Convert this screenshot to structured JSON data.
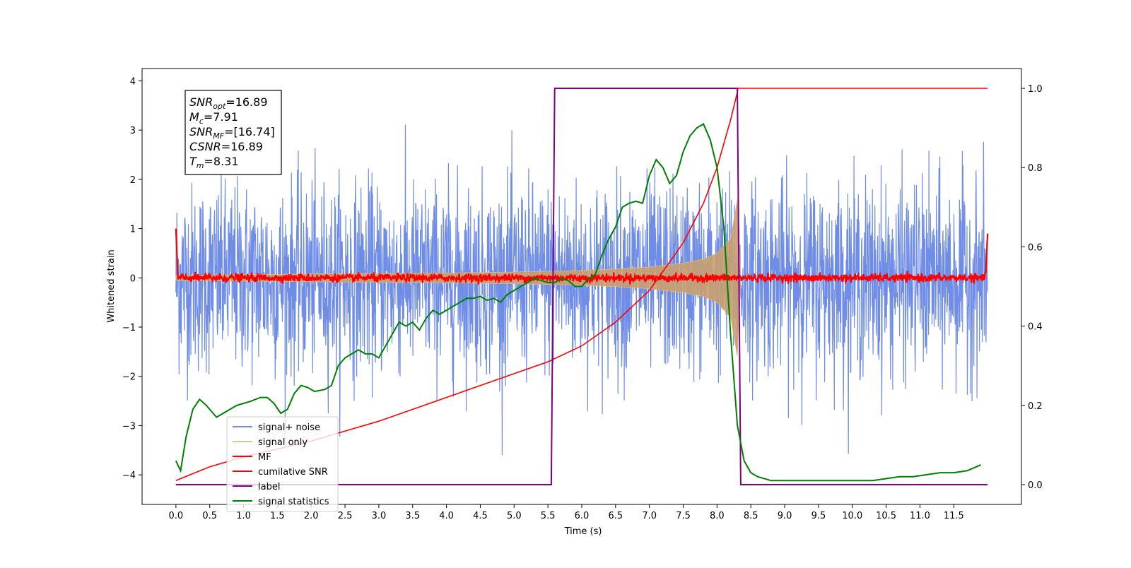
{
  "chart_data": {
    "type": "line",
    "xlabel": "Time (s)",
    "ylabel": "Whitened strain",
    "xlim": [
      -0.5,
      12.5
    ],
    "ylim": [
      -4.6,
      4.25
    ],
    "y2lim": [
      -0.05,
      1.05
    ],
    "grid": false,
    "legend_position": "lower-left",
    "x_ticks": [
      "0.0",
      "0.5",
      "1.0",
      "1.5",
      "2.0",
      "2.5",
      "3.0",
      "3.5",
      "4.0",
      "4.5",
      "5.0",
      "5.5",
      "6.0",
      "6.5",
      "7.0",
      "7.5",
      "8.0",
      "8.5",
      "9.0",
      "9.5",
      "10.0",
      "10.5",
      "11.0",
      "11.5"
    ],
    "y_ticks": [
      "4",
      "3",
      "2",
      "1",
      "0",
      "−1",
      "−2",
      "−3",
      "−4"
    ],
    "y2_ticks": [
      "1.0",
      "0.8",
      "0.6",
      "0.4",
      "0.2",
      "0.0"
    ],
    "annotation": [
      {
        "sym": "SNR",
        "sub": "opt",
        "value": "=16.89"
      },
      {
        "sym": "M",
        "sub": "c",
        "value": "=7.91"
      },
      {
        "sym": "SNR",
        "sub": "MF",
        "value": "=[16.74]"
      },
      {
        "sym": "CSNR",
        "sub": "",
        "value": "=16.89"
      },
      {
        "sym": "T",
        "sub": "m",
        "value": "=8.31"
      }
    ],
    "series": [
      {
        "name": "signal+ noise",
        "color": "#6f8de6",
        "axis": "left",
        "x_range": [
          0,
          12
        ],
        "amplitude_std": 0.95,
        "peak_abs": 3.6
      },
      {
        "name": "signal only",
        "color": "#f4c070",
        "axis": "left",
        "envelope_x": [
          0,
          2,
          4,
          5,
          6,
          6.5,
          7,
          7.5,
          7.8,
          8.0,
          8.2,
          8.3,
          8.35
        ],
        "envelope_y": [
          0.05,
          0.08,
          0.1,
          0.12,
          0.15,
          0.18,
          0.22,
          0.3,
          0.38,
          0.5,
          0.8,
          1.6,
          0
        ]
      },
      {
        "name": "MF",
        "color": "#ff0000",
        "axis": "left",
        "x_range": [
          0,
          12
        ],
        "baseline": 0.0
      },
      {
        "name": "cumilative SNR",
        "color": "#ff0000",
        "axis": "right",
        "x": [
          0,
          0.5,
          1,
          2,
          3,
          4,
          5,
          5.5,
          6,
          6.5,
          7,
          7.5,
          7.8,
          8.0,
          8.2,
          8.3,
          8.31,
          12
        ],
        "y": [
          0.01,
          0.045,
          0.07,
          0.11,
          0.16,
          0.22,
          0.28,
          0.31,
          0.35,
          0.41,
          0.49,
          0.61,
          0.71,
          0.8,
          0.92,
          0.99,
          1.0,
          1.0
        ]
      },
      {
        "name": "label",
        "color": "#800080",
        "axis": "right",
        "x": [
          0,
          5.55,
          5.6,
          8.3,
          8.35,
          12
        ],
        "y": [
          0,
          0,
          1,
          1,
          0,
          0
        ]
      },
      {
        "name": "signal statistics",
        "color": "#008000",
        "axis": "right",
        "x": [
          0.0,
          0.07,
          0.15,
          0.25,
          0.35,
          0.45,
          0.55,
          0.6,
          0.7,
          0.8,
          0.9,
          1.0,
          1.1,
          1.25,
          1.35,
          1.45,
          1.55,
          1.65,
          1.75,
          1.85,
          1.95,
          2.05,
          2.2,
          2.3,
          2.4,
          2.5,
          2.6,
          2.7,
          2.8,
          2.9,
          3.0,
          3.1,
          3.2,
          3.3,
          3.4,
          3.5,
          3.6,
          3.7,
          3.8,
          3.9,
          4.0,
          4.1,
          4.2,
          4.3,
          4.4,
          4.5,
          4.6,
          4.7,
          4.8,
          4.9,
          5.0,
          5.1,
          5.2,
          5.3,
          5.4,
          5.5,
          5.6,
          5.7,
          5.8,
          5.9,
          6.0,
          6.1,
          6.2,
          6.3,
          6.4,
          6.5,
          6.6,
          6.7,
          6.8,
          6.9,
          7.0,
          7.1,
          7.2,
          7.3,
          7.4,
          7.5,
          7.6,
          7.7,
          7.8,
          7.9,
          8.0,
          8.1,
          8.2,
          8.3,
          8.4,
          8.5,
          8.6,
          8.8,
          9.0,
          9.3,
          9.6,
          10.0,
          10.3,
          10.5,
          10.7,
          10.9,
          11.1,
          11.3,
          11.5,
          11.7,
          11.9
        ],
        "y": [
          0.06,
          0.035,
          0.12,
          0.19,
          0.215,
          0.2,
          0.18,
          0.17,
          0.18,
          0.19,
          0.2,
          0.205,
          0.21,
          0.22,
          0.22,
          0.205,
          0.18,
          0.19,
          0.23,
          0.25,
          0.245,
          0.235,
          0.24,
          0.25,
          0.3,
          0.32,
          0.33,
          0.34,
          0.33,
          0.33,
          0.32,
          0.35,
          0.38,
          0.41,
          0.4,
          0.41,
          0.39,
          0.42,
          0.44,
          0.43,
          0.44,
          0.45,
          0.46,
          0.47,
          0.47,
          0.475,
          0.465,
          0.47,
          0.46,
          0.48,
          0.49,
          0.5,
          0.51,
          0.52,
          0.515,
          0.51,
          0.51,
          0.52,
          0.515,
          0.5,
          0.5,
          0.52,
          0.53,
          0.58,
          0.62,
          0.65,
          0.7,
          0.71,
          0.715,
          0.71,
          0.78,
          0.82,
          0.8,
          0.76,
          0.78,
          0.84,
          0.88,
          0.9,
          0.91,
          0.87,
          0.8,
          0.65,
          0.38,
          0.15,
          0.06,
          0.03,
          0.02,
          0.01,
          0.01,
          0.01,
          0.01,
          0.01,
          0.01,
          0.015,
          0.02,
          0.02,
          0.025,
          0.03,
          0.03,
          0.035,
          0.05
        ]
      }
    ]
  }
}
